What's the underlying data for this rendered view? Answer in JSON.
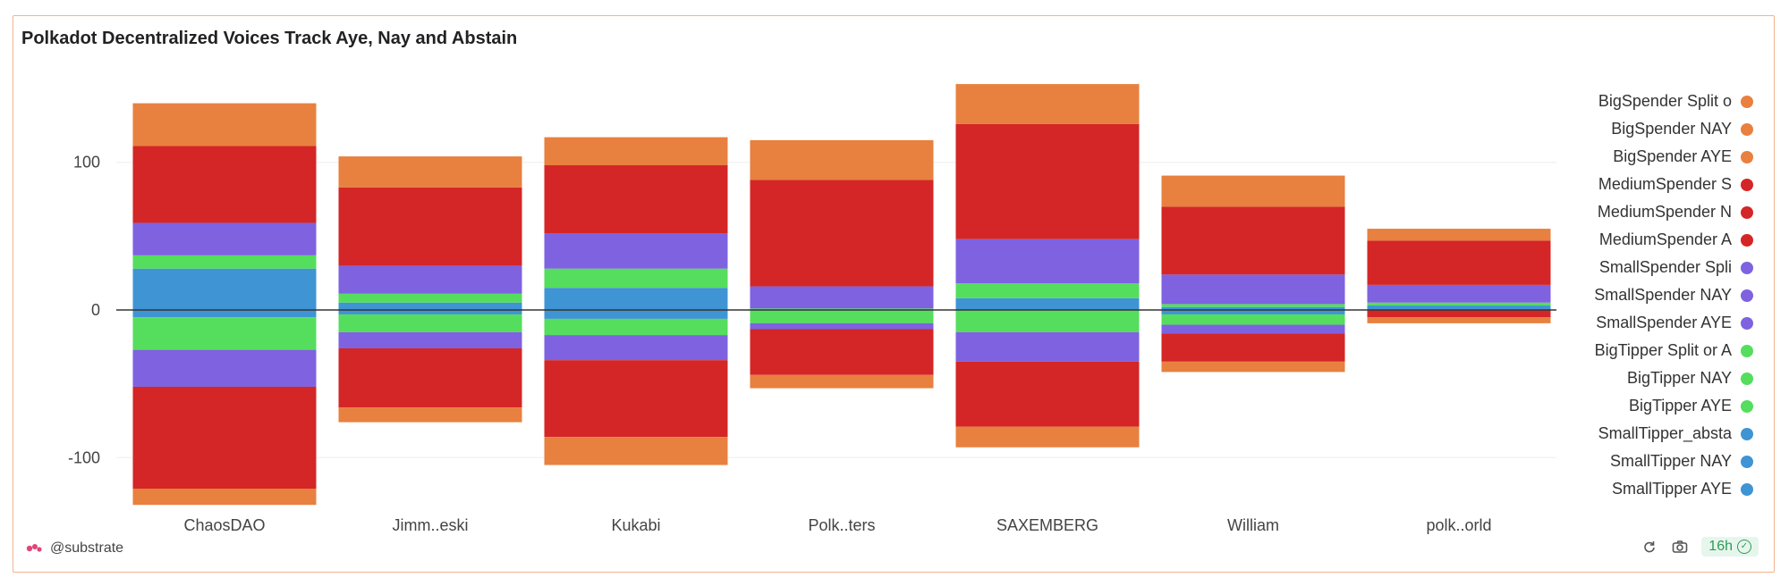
{
  "header": {
    "title": "Polkadot Decentralized Voices Track Aye, Nay and Abstain"
  },
  "footer": {
    "source": "@substrate",
    "freshness": "16h"
  },
  "colors": {
    "orange": "#e8803f",
    "red": "#d42626",
    "purple": "#7e62e0",
    "green": "#55dd5d",
    "blue": "#3f94d4"
  },
  "chart_data": {
    "type": "bar",
    "stacked": true,
    "categories": [
      "ChaosDAO",
      "Jimm..eski",
      "Kukabi",
      "Polk..ters",
      "SAXEMBERG",
      "William",
      "polk..orld"
    ],
    "y_ticks": [
      100,
      0,
      -100
    ],
    "ylim": [
      -133,
      153
    ],
    "legend_position": "right",
    "legend": [
      {
        "label": "BigSpender Split o",
        "color": "#e8803f"
      },
      {
        "label": "BigSpender NAY",
        "color": "#e8803f"
      },
      {
        "label": "BigSpender AYE",
        "color": "#e8803f"
      },
      {
        "label": "MediumSpender S",
        "color": "#d42626"
      },
      {
        "label": "MediumSpender N",
        "color": "#d42626"
      },
      {
        "label": "MediumSpender A",
        "color": "#d42626"
      },
      {
        "label": "SmallSpender Spli",
        "color": "#7e62e0"
      },
      {
        "label": "SmallSpender NAY",
        "color": "#7e62e0"
      },
      {
        "label": "SmallSpender AYE",
        "color": "#7e62e0"
      },
      {
        "label": "BigTipper Split or A",
        "color": "#55dd5d"
      },
      {
        "label": "BigTipper NAY",
        "color": "#55dd5d"
      },
      {
        "label": "BigTipper AYE",
        "color": "#55dd5d"
      },
      {
        "label": "SmallTipper_absta",
        "color": "#3f94d4"
      },
      {
        "label": "SmallTipper NAY",
        "color": "#3f94d4"
      },
      {
        "label": "SmallTipper AYE",
        "color": "#3f94d4"
      }
    ],
    "stacks_positive": [
      {
        "category": "ChaosDAO",
        "SmallTipper": 28,
        "BigTipper": 9,
        "SmallSpender": 22,
        "MediumSpender": 52,
        "BigSpender": 29
      },
      {
        "category": "Jimm..eski",
        "SmallTipper": 5,
        "BigTipper": 6,
        "SmallSpender": 19,
        "MediumSpender": 53,
        "BigSpender": 21
      },
      {
        "category": "Kukabi",
        "SmallTipper": 15,
        "BigTipper": 13,
        "SmallSpender": 24,
        "MediumSpender": 46,
        "BigSpender": 19
      },
      {
        "category": "Polk..ters",
        "SmallTipper": 0,
        "BigTipper": 1,
        "SmallSpender": 15,
        "MediumSpender": 72,
        "BigSpender": 27
      },
      {
        "category": "SAXEMBERG",
        "SmallTipper": 8,
        "BigTipper": 10,
        "SmallSpender": 30,
        "MediumSpender": 78,
        "BigSpender": 27
      },
      {
        "category": "William",
        "SmallTipper": 2,
        "BigTipper": 2,
        "SmallSpender": 20,
        "MediumSpender": 46,
        "BigSpender": 21
      },
      {
        "category": "polk..orld",
        "SmallTipper": 3,
        "BigTipper": 2,
        "SmallSpender": 12,
        "MediumSpender": 30,
        "BigSpender": 8
      }
    ],
    "stacks_negative": [
      {
        "category": "ChaosDAO",
        "SmallTipper": -5,
        "BigTipper": -22,
        "SmallSpender": -25,
        "MediumSpender": -69,
        "BigSpender": -11
      },
      {
        "category": "Jimm..eski",
        "SmallTipper": -3,
        "BigTipper": -12,
        "SmallSpender": -11,
        "MediumSpender": -40,
        "BigSpender": -10
      },
      {
        "category": "Kukabi",
        "SmallTipper": -6,
        "BigTipper": -11,
        "SmallSpender": -17,
        "MediumSpender": -52,
        "BigSpender": -19
      },
      {
        "category": "Polk..ters",
        "SmallTipper": 0,
        "BigTipper": -9,
        "SmallSpender": -4,
        "MediumSpender": -31,
        "BigSpender": -9
      },
      {
        "category": "SAXEMBERG",
        "SmallTipper": 0,
        "BigTipper": -15,
        "SmallSpender": -20,
        "MediumSpender": -44,
        "BigSpender": -14
      },
      {
        "category": "William",
        "SmallTipper": -3,
        "BigTipper": -7,
        "SmallSpender": -6,
        "MediumSpender": -19,
        "BigSpender": -7
      },
      {
        "category": "polk..orld",
        "SmallTipper": 0,
        "BigTipper": 0,
        "SmallSpender": 0,
        "MediumSpender": -5,
        "BigSpender": -4
      }
    ],
    "grid": true
  }
}
